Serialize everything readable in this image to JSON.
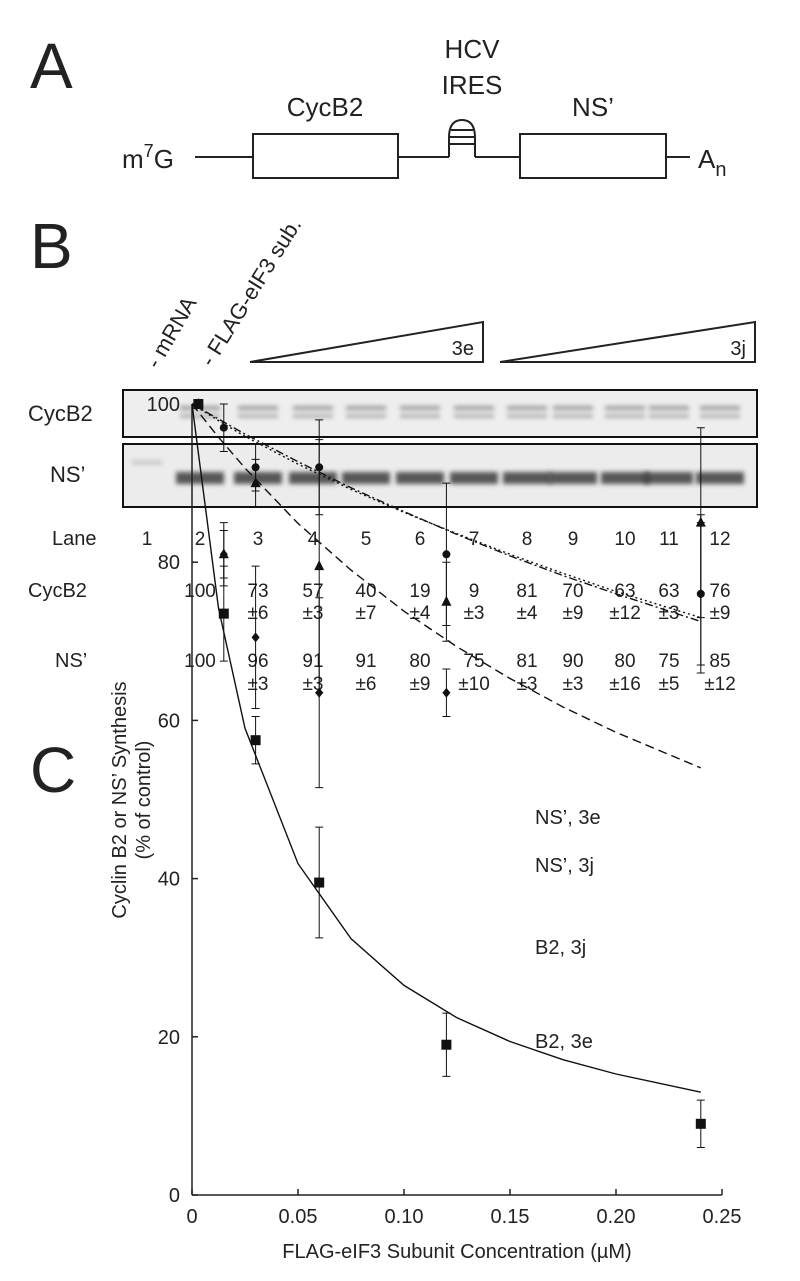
{
  "panel_a": {
    "label": "A",
    "hcv": "HCV",
    "ires": "IRES",
    "cycb2": "CycB2",
    "ns": "NS’",
    "cap": [
      "m",
      "7",
      "G"
    ],
    "tail": [
      "A",
      "n"
    ]
  },
  "panel_b": {
    "label": "B",
    "lane_headers": [
      "- mRNA",
      "- FLAG-eIF3 sub."
    ],
    "gradients": [
      "3e",
      "3j"
    ],
    "gel_rows": [
      "CycB2",
      "NS’"
    ],
    "table": {
      "rows": [
        {
          "label": "Lane",
          "values": [
            1,
            2,
            3,
            4,
            5,
            6,
            7,
            8,
            9,
            10,
            11,
            12
          ]
        },
        {
          "label": "CycB2",
          "values": [
            null,
            100,
            73,
            57,
            40,
            19,
            9,
            81,
            70,
            63,
            63,
            76
          ],
          "errors": [
            null,
            null,
            "±6",
            "±3",
            "±7",
            "±4",
            "±3",
            "±4",
            "±9",
            "±12",
            "±3",
            "±9"
          ]
        },
        {
          "label": "NS’",
          "values": [
            null,
            100,
            96,
            91,
            91,
            80,
            75,
            81,
            90,
            80,
            75,
            85
          ],
          "errors": [
            null,
            null,
            "±3",
            "±3",
            "±6",
            "±9",
            "±10",
            "±3",
            "±3",
            "±16",
            "±5",
            "±12"
          ]
        }
      ]
    }
  },
  "panel_c": {
    "label": "C"
  },
  "chart_data": {
    "type": "scatter",
    "ylabel": [
      "Cyclin B2 or NS’ Synthesis",
      "(% of control)"
    ],
    "xlabel": "FLAG-eIF3 Subunit Concentration (µM)",
    "xlim": [
      0,
      0.25
    ],
    "xticks": [
      0,
      0.05,
      {
        "value": 0.1,
        "label": "0.10"
      },
      0.15,
      {
        "value": 0.2,
        "label": "0.20"
      },
      0.25
    ],
    "ylim": [
      0,
      100
    ],
    "yticks": [
      0,
      20,
      40,
      60,
      80,
      100
    ],
    "x": [
      0.003,
      0.015,
      0.03,
      0.06,
      0.12,
      0.24
    ],
    "fit_x": [
      0,
      0.0125,
      0.025,
      0.05,
      0.075,
      0.1,
      0.125,
      0.15,
      0.175,
      0.2,
      0.24
    ],
    "series": [
      {
        "name": "B2, 3e",
        "color": "#111111",
        "marker": "square",
        "values": [
          100,
          73.5,
          57.5,
          39.5,
          19,
          9
        ],
        "errors": [
          0,
          6,
          3,
          7,
          4,
          3
        ],
        "fit": {
          "dash": "none",
          "values": [
            100,
            74.2,
            59.0,
            41.9,
            32.4,
            26.5,
            22.4,
            19.4,
            17.1,
            15.3,
            13.0
          ]
        }
      },
      {
        "name": "B2, 3j",
        "color": "#111111",
        "marker": "diamond",
        "values": [
          100,
          81,
          70.5,
          63.5,
          63.5,
          76
        ],
        "errors": [
          0,
          4,
          9,
          12,
          3,
          9
        ],
        "fit": {
          "dash": "9 5",
          "values": [
            100,
            95.8,
            91.9,
            84.9,
            79.0,
            73.8,
            69.3,
            65.3,
            61.7,
            58.5,
            54.0
          ]
        }
      },
      {
        "name": "NS’, 3e",
        "color": "#111111",
        "marker": "circle",
        "values": [
          100,
          97,
          92,
          92,
          81,
          76
        ],
        "errors": [
          0,
          3,
          3,
          6,
          9,
          10
        ],
        "fit": {
          "dash": "8 3 2 3",
          "values": [
            100,
            98.1,
            96.2,
            92.7,
            89.4,
            86.4,
            83.5,
            80.8,
            78.3,
            76.0,
            72.5
          ]
        }
      },
      {
        "name": "NS’, 3j",
        "color": "#111111",
        "marker": "triangle",
        "values": [
          100,
          81,
          90,
          79.5,
          75,
          85
        ],
        "errors": [
          0,
          3,
          3,
          16,
          5,
          12
        ],
        "fit": {
          "dash": "2 3",
          "values": [
            100,
            97.9,
            95.9,
            92.4,
            89.2,
            86.3,
            83.6,
            81.0,
            78.6,
            76.3,
            73.0
          ]
        }
      }
    ]
  }
}
